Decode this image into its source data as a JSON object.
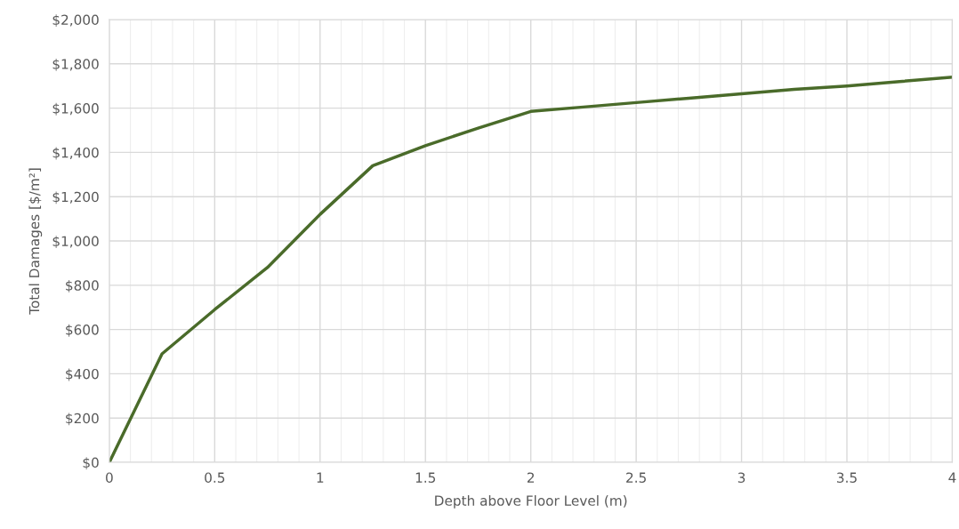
{
  "chart_data": {
    "type": "line",
    "xlabel": "Depth above Floor Level (m)",
    "ylabel": "Total Damages [$/m²]",
    "x": [
      0,
      0.25,
      0.5,
      0.75,
      1.0,
      1.25,
      1.5,
      1.75,
      2.0,
      2.25,
      2.5,
      2.75,
      3.0,
      3.25,
      3.5,
      3.75,
      4.0
    ],
    "series": [
      {
        "color": "#4a6b2a",
        "values": [
          0,
          490,
          690,
          880,
          1120,
          1340,
          1430,
          1510,
          1585,
          1605,
          1625,
          1645,
          1665,
          1685,
          1700,
          1720,
          1740
        ]
      }
    ],
    "xlim": [
      0,
      4
    ],
    "xticks": [
      0,
      0.5,
      1,
      1.5,
      2,
      2.5,
      3,
      3.5,
      4
    ],
    "ylim": [
      0,
      2000
    ],
    "yticks": [
      {
        "value": 0,
        "label": "$0"
      },
      {
        "value": 200,
        "label": "$200"
      },
      {
        "value": 400,
        "label": "$400"
      },
      {
        "value": 600,
        "label": "$600"
      },
      {
        "value": 800,
        "label": "$800"
      },
      {
        "value": 1000,
        "label": "$1,000"
      },
      {
        "value": 1200,
        "label": "$1,200"
      },
      {
        "value": 1400,
        "label": "$1,400"
      },
      {
        "value": 1600,
        "label": "$1,600"
      },
      {
        "value": 1800,
        "label": "$1,800"
      },
      {
        "value": 2000,
        "label": "$2,000"
      }
    ],
    "grid": true,
    "marker": "none",
    "line_style": "solid"
  }
}
